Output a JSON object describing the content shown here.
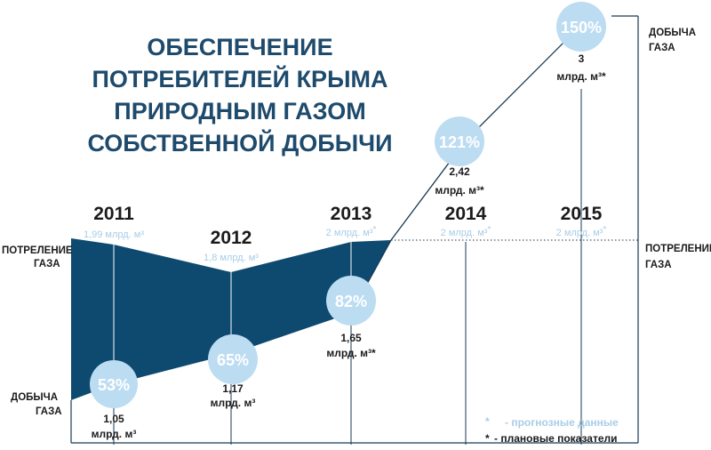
{
  "title_lines": [
    "ОБЕСПЕЧЕНИЕ",
    "ПОТРЕБИТЕЛЕЙ КРЫМА",
    "ПРИРОДНЫМ ГАЗОМ",
    "СОБСТВЕННОЙ ДОБЫЧИ"
  ],
  "side_labels": {
    "consumption_left": [
      "ПОТРЕЛЕНИЕ",
      "ГАЗА"
    ],
    "production_left": [
      "ДОБЫЧА",
      "ГАЗА"
    ],
    "consumption_right": [
      "ПОТРЕЛЕНИЕ",
      "ГАЗА"
    ],
    "production_right": [
      "ДОБЫЧА",
      "ГАЗА"
    ]
  },
  "legend": {
    "forecast": "- прогнозные данные",
    "planned": "- плановые показатели"
  },
  "colors": {
    "area": "#0e4a6f",
    "bubble": "#bcdcf2",
    "title": "#1e4a6c",
    "light_text": "#a9cde7",
    "line": "#1a3a55"
  },
  "chart_data": {
    "type": "area",
    "title": "ОБЕСПЕЧЕНИЕ ПОТРЕБИТЕЛЕЙ КРЫМА ПРИРОДНЫМ ГАЗОМ СОБСТВЕННОЙ ДОБЫЧИ",
    "unit": "млрд. м³",
    "categories": [
      "2011",
      "2012",
      "2013",
      "2014",
      "2015"
    ],
    "series": [
      {
        "name": "ПОТРЕЛЕНИЕ ГАЗА",
        "values": [
          1.99,
          1.8,
          2,
          2,
          2
        ],
        "labels": [
          "1,99 млрд. м³",
          "1,8 млрд. м³",
          "2 млрд. м³",
          "2 млрд. м³",
          "2 млрд. м³"
        ],
        "forecast_marks": [
          false,
          false,
          true,
          true,
          true
        ]
      },
      {
        "name": "ДОБЫЧА ГАЗА",
        "values": [
          1.05,
          1.17,
          1.65,
          2.42,
          3
        ],
        "value_texts": [
          "1,05",
          "1,17",
          "1,65",
          "2,42",
          "3"
        ],
        "unit_texts": [
          "млрд. м³",
          "млрд. м³",
          "млрд. м³*",
          "млрд. м³*",
          "млрд. м³*"
        ],
        "percent": [
          "53%",
          "65%",
          "82%",
          "121%",
          "150%"
        ]
      }
    ]
  }
}
